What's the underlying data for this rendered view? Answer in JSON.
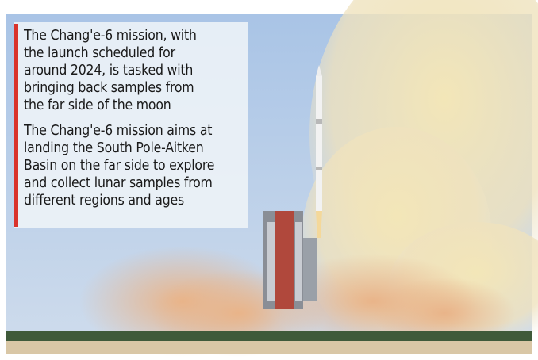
{
  "caption": {
    "paragraphs": [
      {
        "lines": [
          "The Chang'e-6 mission, with",
          "the launch scheduled for",
          "around 2024, is tasked with",
          "bringing back samples from",
          "the far side of the moon"
        ]
      },
      {
        "lines": [
          "The Chang'e-6 mission aims at",
          "landing the South Pole-Aitken",
          "Basin on the far side to explore",
          "and collect lunar samples from",
          "different regions and ages"
        ]
      }
    ]
  }
}
